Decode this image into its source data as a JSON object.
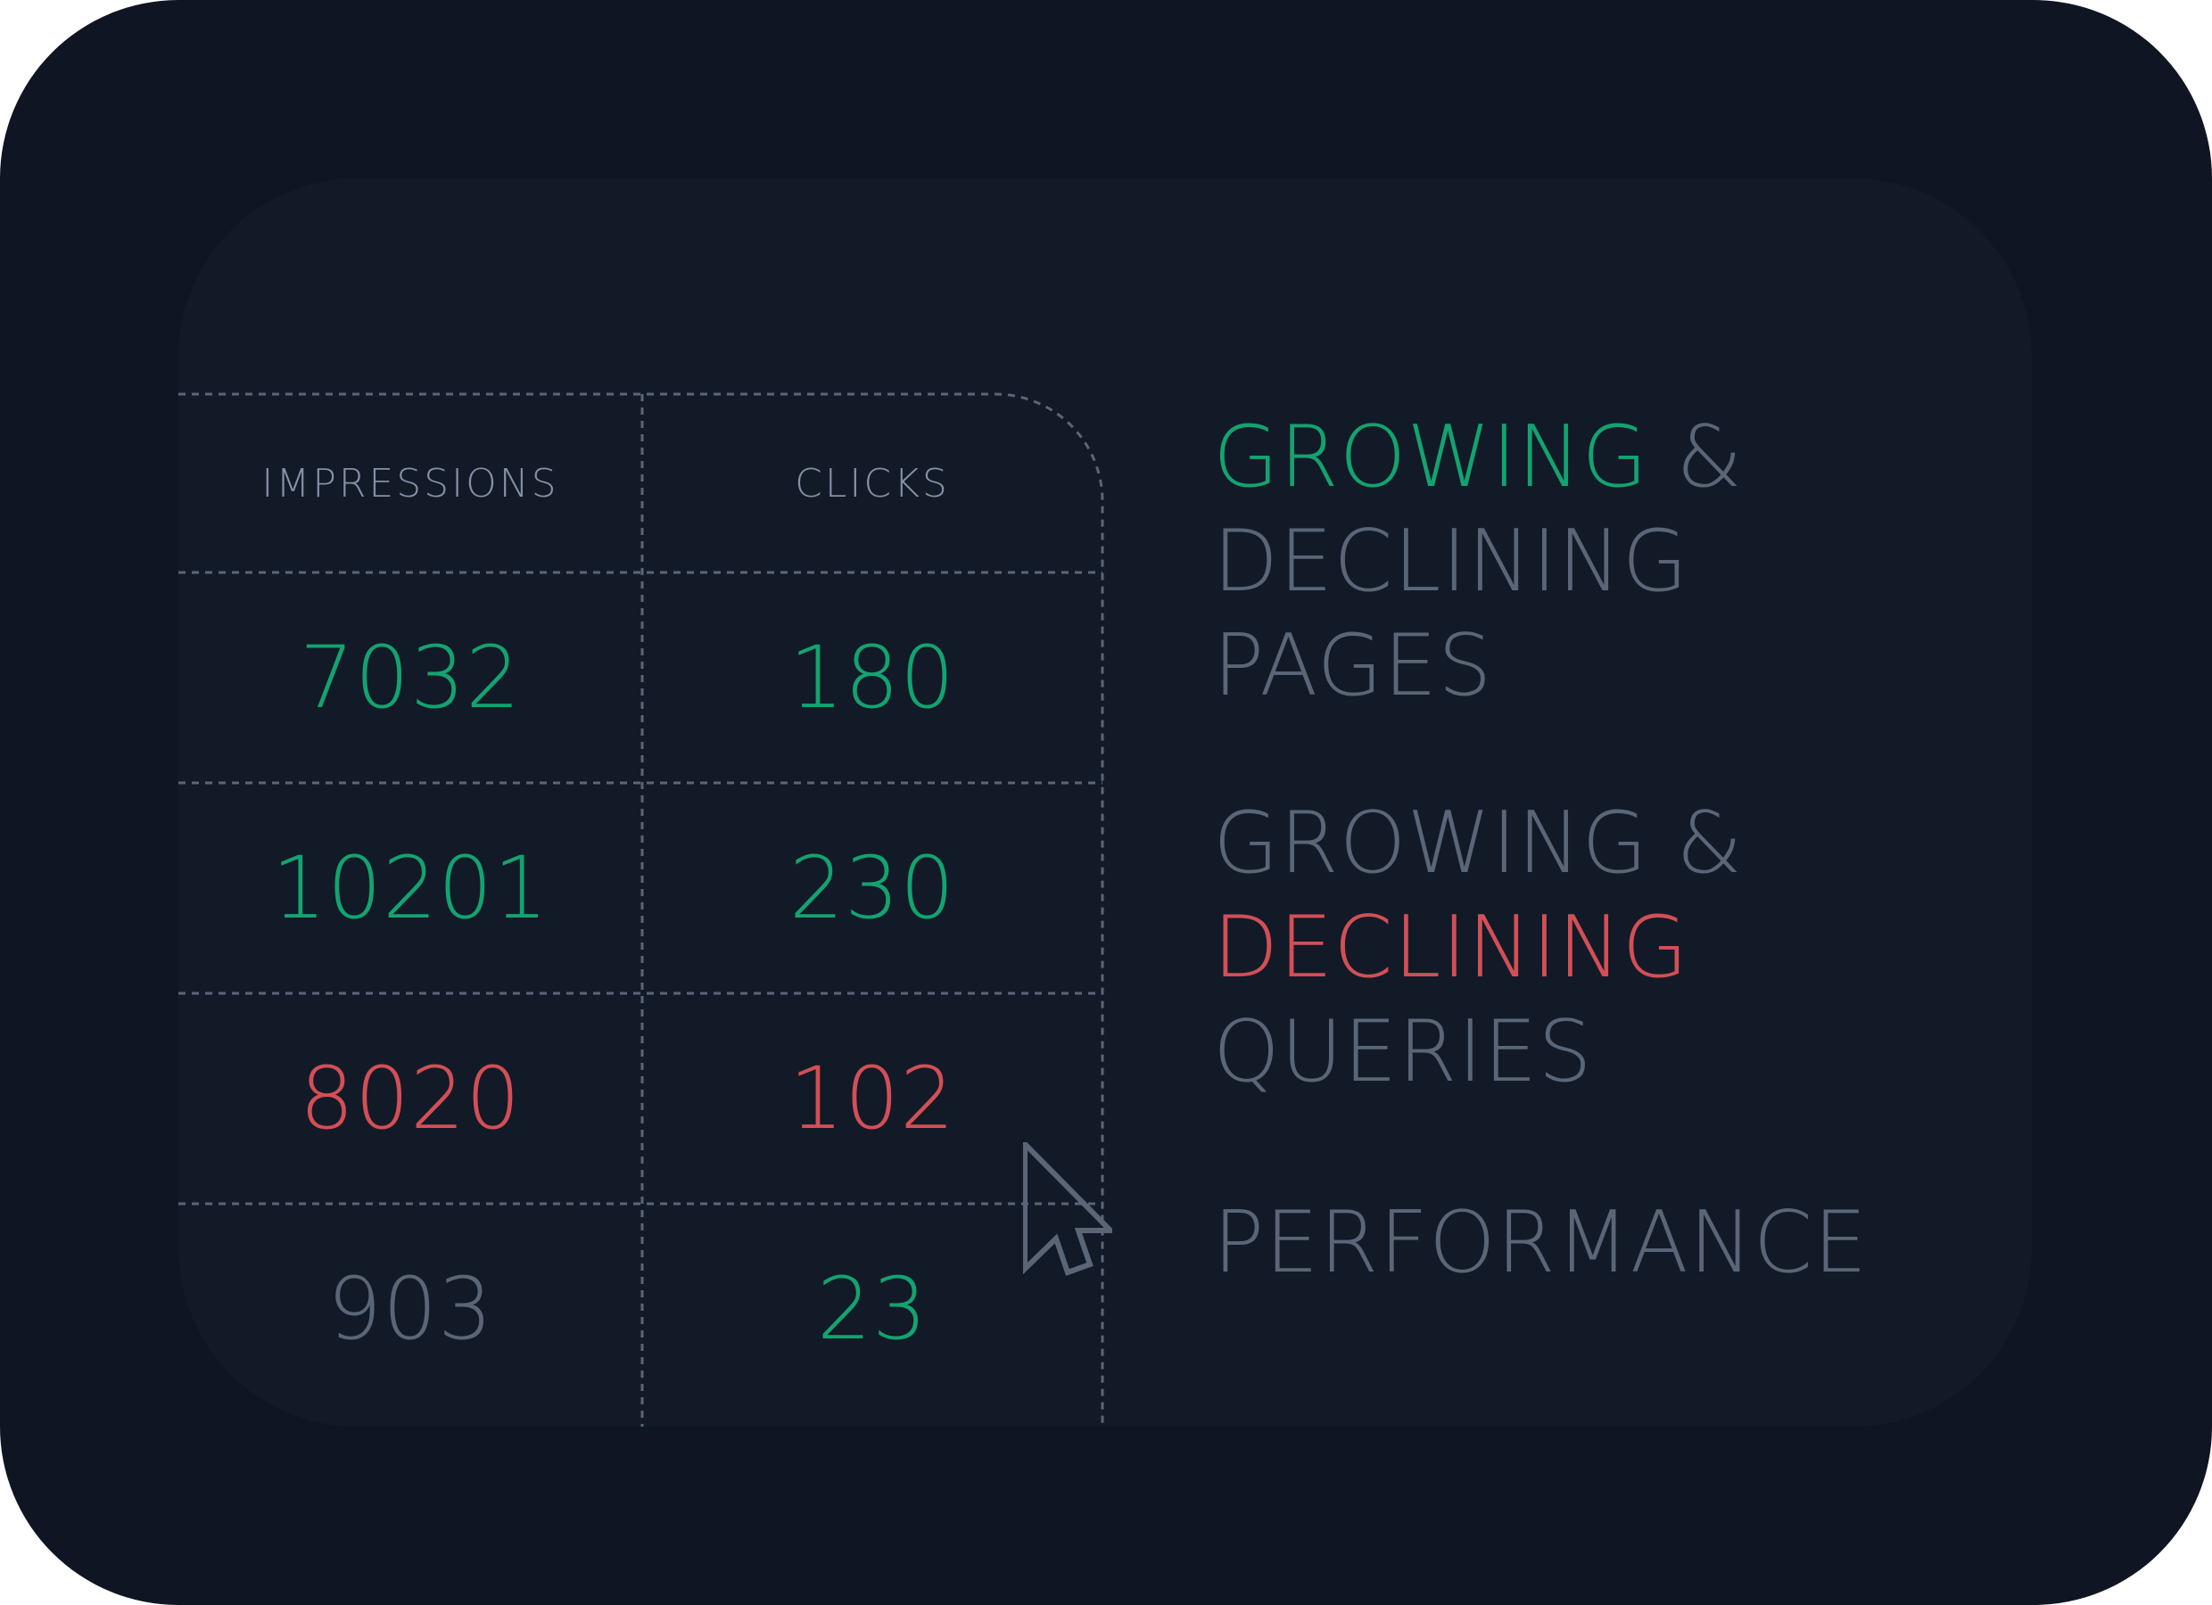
{
  "colors": {
    "frame_bg": "#0f1522",
    "card_bg": "#121a28",
    "grid_line": "#5a6677",
    "header_text": "#8591a6",
    "growing": "#13a36f",
    "declining": "#d34f55",
    "neutral": "#5a6677"
  },
  "table": {
    "headers": {
      "impressions": "IMPRESSIONS",
      "clicks": "CLICKS"
    },
    "rows": [
      {
        "impressions": "7032",
        "impressions_trend": "growing",
        "clicks": "180",
        "clicks_trend": "growing"
      },
      {
        "impressions": "10201",
        "impressions_trend": "growing",
        "clicks": "230",
        "clicks_trend": "growing"
      },
      {
        "impressions": "8020",
        "impressions_trend": "declining",
        "clicks": "102",
        "clicks_trend": "declining"
      },
      {
        "impressions": "903",
        "impressions_trend": "neutral",
        "clicks": "23",
        "clicks_trend": "growing"
      }
    ]
  },
  "legend": {
    "item1": {
      "word1": "GROWING",
      "amp": " &",
      "line2": "DECLINING",
      "line3": "PAGES"
    },
    "item2": {
      "word1": "GROWING &",
      "line2": "DECLINING",
      "line3": "QUERIES"
    },
    "item3": {
      "line1": "PERFORMANCE"
    }
  },
  "icons": {
    "pointer": "mouse-pointer-icon"
  }
}
